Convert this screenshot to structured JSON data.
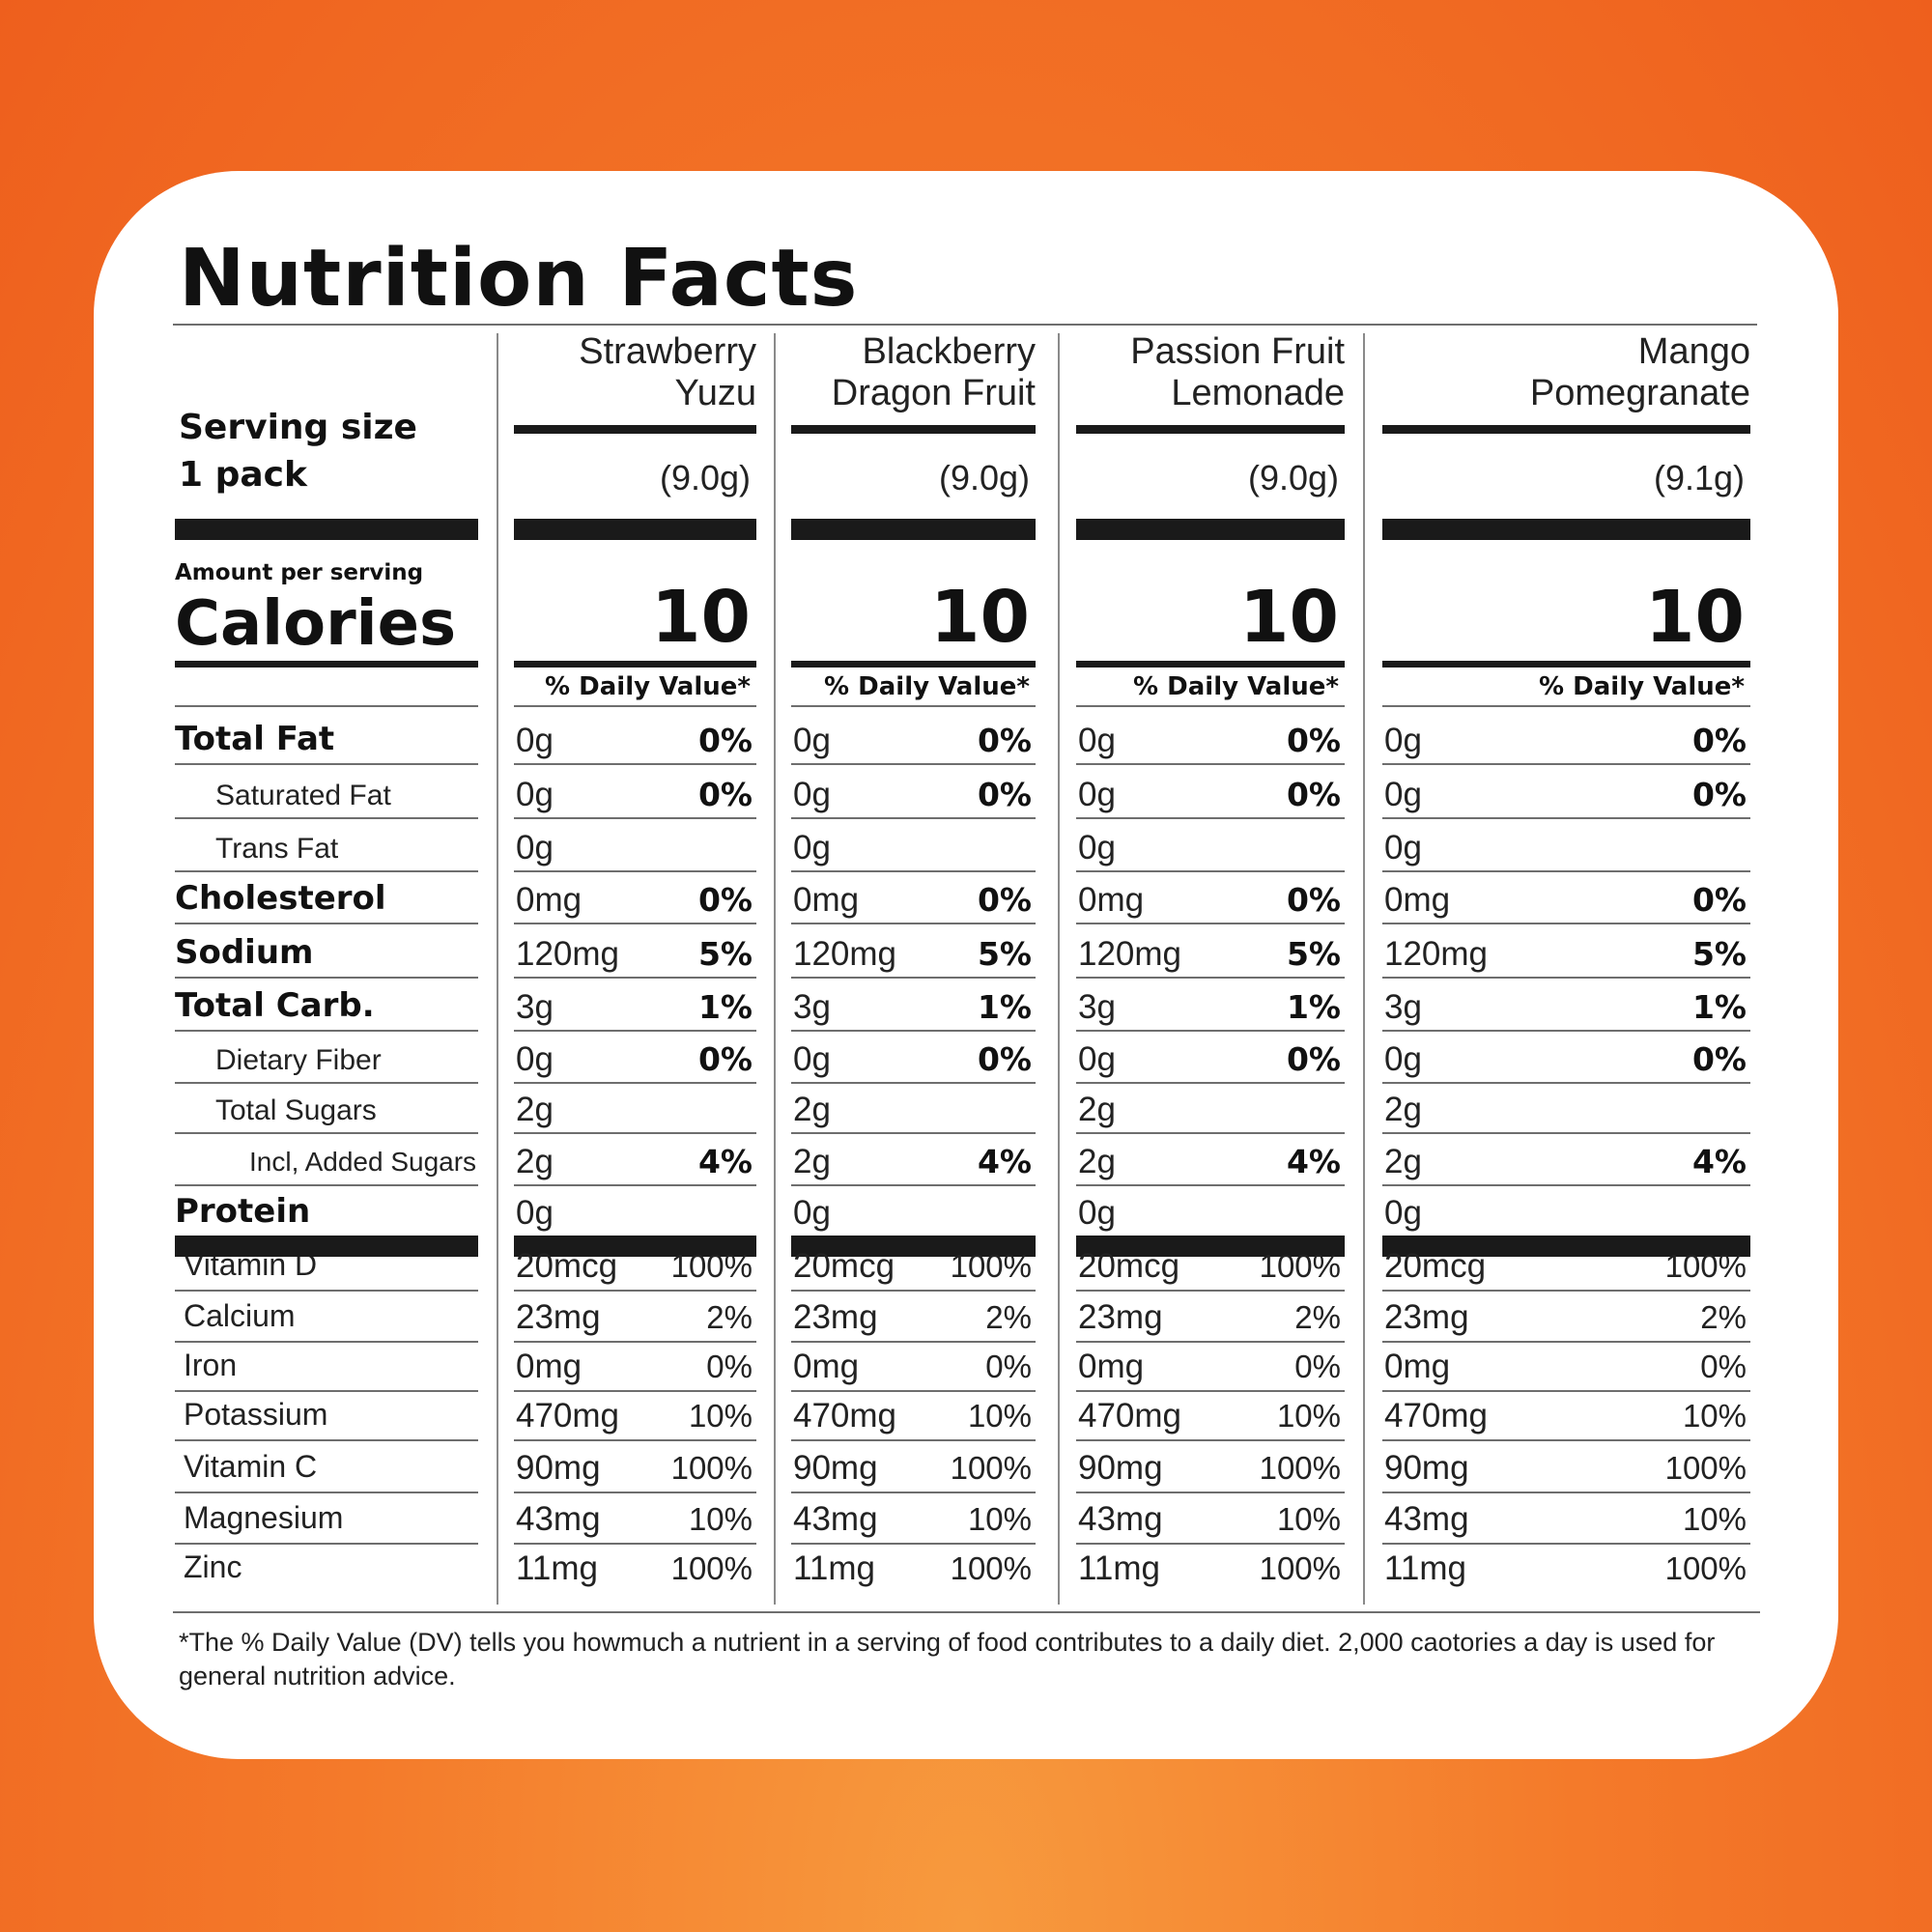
{
  "title": "Nutrition Facts",
  "serving": {
    "label": "Serving size",
    "value": "1 pack"
  },
  "amount_per_serving": "Amount per serving",
  "calories_label": "Calories",
  "dv_header": "% Daily Value*",
  "columns": [
    {
      "name_line1": "Strawberry",
      "name_line2": "Yuzu",
      "serving": "(9.0g)",
      "calories": "10"
    },
    {
      "name_line1": "Blackberry",
      "name_line2": "Dragon Fruit",
      "serving": "(9.0g)",
      "calories": "10"
    },
    {
      "name_line1": "Passion Fruit",
      "name_line2": "Lemonade",
      "serving": "(9.0g)",
      "calories": "10"
    },
    {
      "name_line1": "Mango",
      "name_line2": "Pomegranate",
      "serving": "(9.1g)",
      "calories": "10"
    }
  ],
  "nutrients": [
    {
      "label": "Total Fat",
      "style": "main",
      "amount": "0g",
      "pct": "0%"
    },
    {
      "label": "Saturated Fat",
      "style": "sub",
      "amount": "0g",
      "pct": "0%"
    },
    {
      "label": "Trans Fat",
      "style": "sub",
      "amount": "0g",
      "pct": ""
    },
    {
      "label": "Cholesterol",
      "style": "main",
      "amount": "0mg",
      "pct": "0%"
    },
    {
      "label": "Sodium",
      "style": "main",
      "amount": "120mg",
      "pct": "5%"
    },
    {
      "label": "Total Carb.",
      "style": "main",
      "amount": "3g",
      "pct": "1%"
    },
    {
      "label": "Dietary Fiber",
      "style": "sub",
      "amount": "0g",
      "pct": "0%"
    },
    {
      "label": "Total Sugars",
      "style": "sub",
      "amount": "2g",
      "pct": ""
    },
    {
      "label": "Incl, Added Sugars",
      "style": "sub2",
      "amount": "2g",
      "pct": "4%"
    },
    {
      "label": "Protein",
      "style": "main",
      "amount": "0g",
      "pct": ""
    }
  ],
  "vitamins": [
    {
      "label": "Vitamin D",
      "amount": "20mcg",
      "pct": "100%"
    },
    {
      "label": "Calcium",
      "amount": "23mg",
      "pct": "2%"
    },
    {
      "label": "Iron",
      "amount": "0mg",
      "pct": "0%"
    },
    {
      "label": "Potassium",
      "amount": "470mg",
      "pct": "10%"
    },
    {
      "label": "Vitamin C",
      "amount": "90mg",
      "pct": "100%"
    },
    {
      "label": "Magnesium",
      "amount": "43mg",
      "pct": "10%"
    },
    {
      "label": "Zinc",
      "amount": "11mg",
      "pct": "100%"
    }
  ],
  "footnote": "*The % Daily Value (DV) tells you howmuch  a nutrient in a serving of food contributes to a daily diet. 2,000 caotories a day is used for general nutrition advice."
}
